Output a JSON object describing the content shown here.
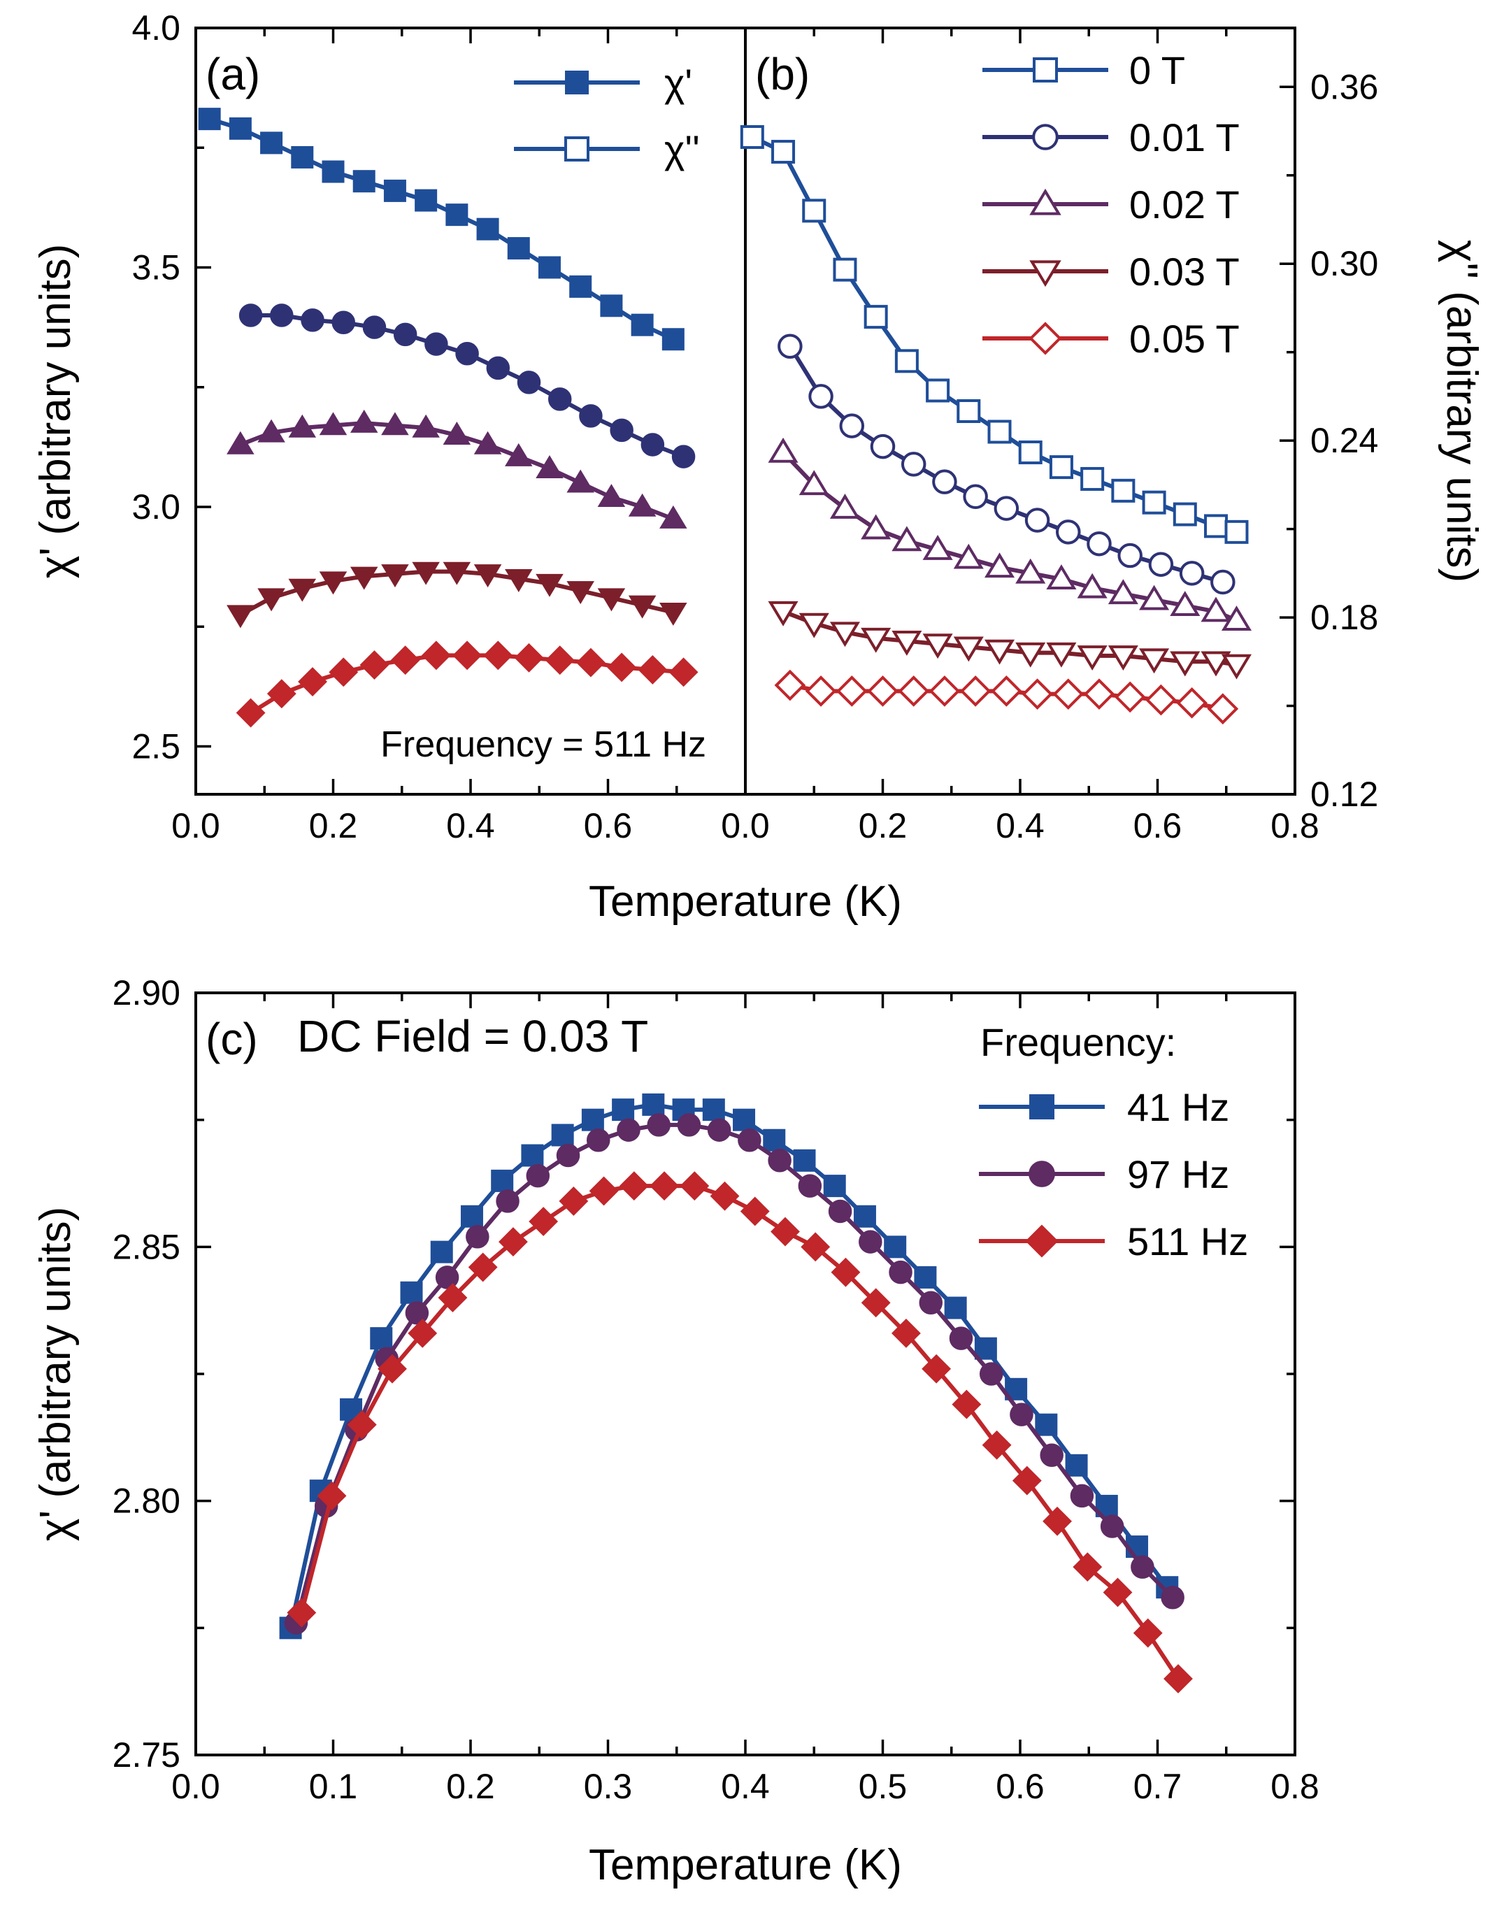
{
  "chart_data": [
    {
      "panel": "a",
      "type": "line",
      "panel_label": "(a)",
      "xlabel": "Temperature (K)",
      "ylabel": "χ' (arbitrary units)",
      "xlim": [
        0.0,
        0.8
      ],
      "ylim": [
        2.4,
        4.0
      ],
      "x_ticks": [
        "0.0",
        "0.2",
        "0.4",
        "0.6"
      ],
      "y_ticks": [
        "2.5",
        "3.0",
        "3.5",
        "4.0"
      ],
      "annotation": "Frequency = 511 Hz",
      "legend": [
        {
          "label": "χ'",
          "marker": "square",
          "filled": true
        },
        {
          "label": "χ''",
          "marker": "square",
          "filled": false
        }
      ],
      "series": [
        {
          "name": "0 T",
          "marker": "square",
          "color": "#1f4e99",
          "x": [
            0.02,
            0.065,
            0.11,
            0.155,
            0.2,
            0.245,
            0.29,
            0.335,
            0.38,
            0.425,
            0.47,
            0.515,
            0.56,
            0.605,
            0.65,
            0.695
          ],
          "y": [
            3.81,
            3.79,
            3.76,
            3.73,
            3.7,
            3.68,
            3.66,
            3.64,
            3.61,
            3.58,
            3.54,
            3.5,
            3.46,
            3.42,
            3.38,
            3.35
          ]
        },
        {
          "name": "0.01 T",
          "marker": "circle",
          "color": "#2e3275",
          "x": [
            0.08,
            0.125,
            0.17,
            0.215,
            0.26,
            0.305,
            0.35,
            0.395,
            0.44,
            0.485,
            0.53,
            0.575,
            0.62,
            0.665,
            0.71
          ],
          "y": [
            3.4,
            3.4,
            3.39,
            3.385,
            3.375,
            3.36,
            3.34,
            3.32,
            3.29,
            3.26,
            3.225,
            3.19,
            3.16,
            3.13,
            3.105
          ]
        },
        {
          "name": "0.02 T",
          "marker": "triangle-up",
          "color": "#5e2b63",
          "x": [
            0.065,
            0.11,
            0.155,
            0.2,
            0.245,
            0.29,
            0.335,
            0.38,
            0.425,
            0.47,
            0.515,
            0.56,
            0.605,
            0.65,
            0.695
          ],
          "y": [
            3.13,
            3.155,
            3.165,
            3.17,
            3.175,
            3.17,
            3.165,
            3.15,
            3.13,
            3.105,
            3.08,
            3.05,
            3.02,
            3.0,
            2.975
          ]
        },
        {
          "name": "0.03 T",
          "marker": "triangle-down",
          "color": "#7c1f2a",
          "x": [
            0.065,
            0.11,
            0.155,
            0.2,
            0.245,
            0.29,
            0.335,
            0.38,
            0.425,
            0.47,
            0.515,
            0.56,
            0.605,
            0.65,
            0.695
          ],
          "y": [
            2.775,
            2.81,
            2.83,
            2.845,
            2.855,
            2.86,
            2.865,
            2.865,
            2.86,
            2.85,
            2.84,
            2.825,
            2.81,
            2.795,
            2.78
          ]
        },
        {
          "name": "0.05 T",
          "marker": "diamond",
          "color": "#c0262a",
          "x": [
            0.08,
            0.125,
            0.17,
            0.215,
            0.26,
            0.305,
            0.35,
            0.395,
            0.44,
            0.485,
            0.53,
            0.575,
            0.62,
            0.665,
            0.71
          ],
          "y": [
            2.57,
            2.61,
            2.635,
            2.655,
            2.67,
            2.68,
            2.69,
            2.69,
            2.69,
            2.685,
            2.68,
            2.675,
            2.665,
            2.66,
            2.655
          ]
        }
      ]
    },
    {
      "panel": "b",
      "type": "line",
      "panel_label": "(b)",
      "xlabel": "Temperature (K)",
      "ylabel": "χ'' (arbitrary units)",
      "xlim": [
        0.0,
        0.8
      ],
      "ylim": [
        0.12,
        0.38
      ],
      "x_ticks": [
        "0.0",
        "0.2",
        "0.4",
        "0.6",
        "0.8"
      ],
      "y_ticks": [
        "0.12",
        "0.18",
        "0.24",
        "0.30",
        "0.36"
      ],
      "legend": [
        {
          "label": "0 T",
          "marker": "square"
        },
        {
          "label": "0.01 T",
          "marker": "circle"
        },
        {
          "label": "0.02 T",
          "marker": "triangle-up"
        },
        {
          "label": "0.03 T",
          "marker": "triangle-down"
        },
        {
          "label": "0.05 T",
          "marker": "diamond"
        }
      ],
      "series": [
        {
          "name": "0 T",
          "marker": "square",
          "color": "#1f4e99",
          "x": [
            0.01,
            0.055,
            0.1,
            0.145,
            0.19,
            0.235,
            0.28,
            0.325,
            0.37,
            0.415,
            0.46,
            0.505,
            0.55,
            0.595,
            0.64,
            0.685,
            0.715
          ],
          "y": [
            0.343,
            0.338,
            0.318,
            0.298,
            0.282,
            0.267,
            0.257,
            0.25,
            0.243,
            0.236,
            0.231,
            0.227,
            0.223,
            0.219,
            0.215,
            0.211,
            0.209
          ]
        },
        {
          "name": "0.01 T",
          "marker": "circle",
          "color": "#2e3275",
          "x": [
            0.065,
            0.11,
            0.155,
            0.2,
            0.245,
            0.29,
            0.335,
            0.38,
            0.425,
            0.47,
            0.515,
            0.56,
            0.605,
            0.65,
            0.695
          ],
          "y": [
            0.272,
            0.255,
            0.245,
            0.238,
            0.232,
            0.226,
            0.221,
            0.217,
            0.213,
            0.209,
            0.205,
            0.201,
            0.198,
            0.195,
            0.192
          ]
        },
        {
          "name": "0.02 T",
          "marker": "triangle-up",
          "color": "#5e2b63",
          "x": [
            0.055,
            0.1,
            0.145,
            0.19,
            0.235,
            0.28,
            0.325,
            0.37,
            0.415,
            0.46,
            0.505,
            0.55,
            0.595,
            0.64,
            0.685,
            0.715
          ],
          "y": [
            0.236,
            0.225,
            0.217,
            0.21,
            0.206,
            0.203,
            0.2,
            0.197,
            0.195,
            0.193,
            0.19,
            0.188,
            0.186,
            0.184,
            0.182,
            0.179
          ]
        },
        {
          "name": "0.03 T",
          "marker": "triangle-down",
          "color": "#7c1f2a",
          "x": [
            0.055,
            0.1,
            0.145,
            0.19,
            0.235,
            0.28,
            0.325,
            0.37,
            0.415,
            0.46,
            0.505,
            0.55,
            0.595,
            0.64,
            0.685,
            0.715
          ],
          "y": [
            0.182,
            0.178,
            0.175,
            0.173,
            0.172,
            0.171,
            0.17,
            0.169,
            0.168,
            0.168,
            0.167,
            0.167,
            0.166,
            0.165,
            0.165,
            0.164
          ]
        },
        {
          "name": "0.05 T",
          "marker": "diamond",
          "color": "#c0262a",
          "x": [
            0.065,
            0.11,
            0.155,
            0.2,
            0.245,
            0.29,
            0.335,
            0.38,
            0.425,
            0.47,
            0.515,
            0.56,
            0.605,
            0.65,
            0.695
          ],
          "y": [
            0.157,
            0.155,
            0.155,
            0.155,
            0.155,
            0.155,
            0.155,
            0.155,
            0.154,
            0.154,
            0.154,
            0.153,
            0.152,
            0.151,
            0.149
          ]
        }
      ]
    },
    {
      "panel": "c",
      "type": "line",
      "panel_label": "(c)",
      "title": "DC Field = 0.03 T",
      "xlabel": "Temperature (K)",
      "ylabel": "χ' (arbitrary units)",
      "xlim": [
        0.0,
        0.8
      ],
      "ylim": [
        2.75,
        2.9
      ],
      "x_ticks": [
        "0.0",
        "0.1",
        "0.2",
        "0.3",
        "0.4",
        "0.5",
        "0.6",
        "0.7",
        "0.8"
      ],
      "y_ticks": [
        "2.75",
        "2.80",
        "2.85",
        "2.90"
      ],
      "legend_title": "Frequency:",
      "series": [
        {
          "name": "41 Hz",
          "marker": "square",
          "color": "#1f4e99",
          "x": [
            0.069,
            0.091,
            0.113,
            0.135,
            0.157,
            0.179,
            0.201,
            0.223,
            0.245,
            0.267,
            0.289,
            0.311,
            0.333,
            0.355,
            0.377,
            0.399,
            0.421,
            0.443,
            0.465,
            0.487,
            0.509,
            0.531,
            0.553,
            0.575,
            0.597,
            0.619,
            0.641,
            0.663,
            0.685,
            0.707
          ],
          "y": [
            2.775,
            2.802,
            2.818,
            2.832,
            2.841,
            2.849,
            2.856,
            2.863,
            2.868,
            2.872,
            2.875,
            2.877,
            2.878,
            2.877,
            2.877,
            2.875,
            2.871,
            2.867,
            2.862,
            2.856,
            2.85,
            2.844,
            2.838,
            2.83,
            2.822,
            2.815,
            2.807,
            2.799,
            2.791,
            2.783
          ]
        },
        {
          "name": "97 Hz",
          "marker": "circle",
          "color": "#5e2b63",
          "x": [
            0.073,
            0.095,
            0.117,
            0.139,
            0.161,
            0.183,
            0.205,
            0.227,
            0.249,
            0.271,
            0.293,
            0.315,
            0.337,
            0.359,
            0.381,
            0.403,
            0.425,
            0.447,
            0.469,
            0.491,
            0.513,
            0.535,
            0.557,
            0.579,
            0.601,
            0.623,
            0.645,
            0.667,
            0.689,
            0.711
          ],
          "y": [
            2.776,
            2.799,
            2.814,
            2.828,
            2.837,
            2.844,
            2.852,
            2.859,
            2.864,
            2.868,
            2.871,
            2.873,
            2.874,
            2.874,
            2.873,
            2.871,
            2.867,
            2.862,
            2.857,
            2.851,
            2.845,
            2.839,
            2.832,
            2.825,
            2.817,
            2.809,
            2.801,
            2.795,
            2.787,
            2.781
          ]
        },
        {
          "name": "511 Hz",
          "marker": "diamond",
          "color": "#c0262a",
          "x": [
            0.077,
            0.099,
            0.121,
            0.143,
            0.165,
            0.187,
            0.209,
            0.231,
            0.253,
            0.275,
            0.297,
            0.319,
            0.341,
            0.363,
            0.385,
            0.407,
            0.429,
            0.451,
            0.473,
            0.495,
            0.517,
            0.539,
            0.561,
            0.583,
            0.605,
            0.627,
            0.649,
            0.671,
            0.693,
            0.715
          ],
          "y": [
            2.778,
            2.801,
            2.815,
            2.826,
            2.833,
            2.84,
            2.846,
            2.851,
            2.855,
            2.859,
            2.861,
            2.862,
            2.862,
            2.862,
            2.86,
            2.857,
            2.853,
            2.85,
            2.845,
            2.839,
            2.833,
            2.826,
            2.819,
            2.811,
            2.804,
            2.796,
            2.787,
            2.782,
            2.774,
            2.765
          ]
        }
      ]
    }
  ]
}
